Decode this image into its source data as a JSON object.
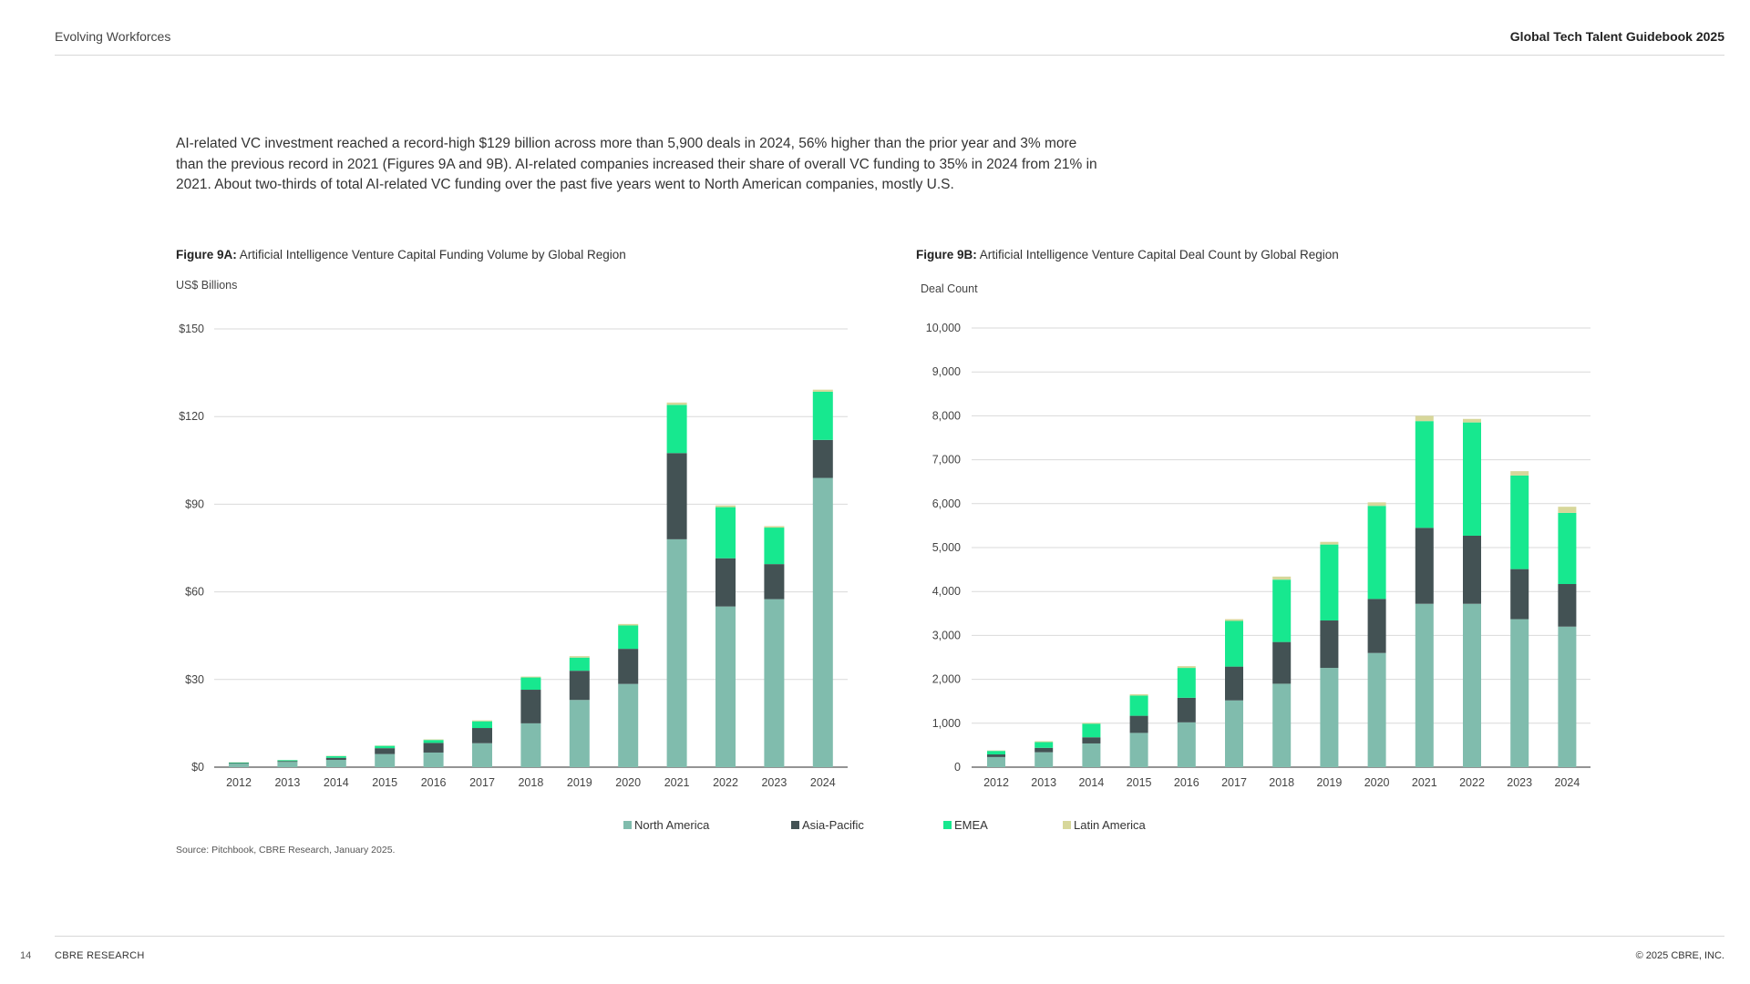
{
  "header": {
    "section": "Evolving Workforces",
    "publication": "Global Tech Talent Guidebook 2025"
  },
  "intro_text": "AI-related VC investment reached a record-high $129 billion across more than 5,900 deals in 2024, 56% higher than the prior year and 3% more than the previous record in 2021 (Figures 9A and 9B). AI-related companies increased their share of overall VC funding to 35% in 2024 from 21% in 2021. About two-thirds of total AI-related VC funding over the past five years went to North American companies, mostly U.S.",
  "figure_a": {
    "label": "Figure 9A:",
    "title": "Artificial Intelligence Venture Capital Funding Volume by Global Region",
    "unit": "US$ Billions"
  },
  "figure_b": {
    "label": "Figure 9B:",
    "title": "Artificial Intelligence Venture Capital Deal Count by Global Region",
    "unit": "Deal Count"
  },
  "legend": [
    {
      "name": "North America",
      "color": "#80bcad"
    },
    {
      "name": "Asia-Pacific",
      "color": "#435254"
    },
    {
      "name": "EMEA",
      "color": "#17e88f"
    },
    {
      "name": "Latin America",
      "color": "#d7d79a"
    }
  ],
  "source": "Source: Pitchbook, CBRE Research, January 2025.",
  "footer": {
    "page_number": "14",
    "org": "CBRE RESEARCH",
    "copyright": "© 2025 CBRE, INC."
  },
  "chart_data": [
    {
      "type": "bar",
      "stacked": true,
      "title": "Artificial Intelligence Venture Capital Funding Volume by Global Region",
      "ylabel": "US$ Billions",
      "categories": [
        "2012",
        "2013",
        "2014",
        "2015",
        "2016",
        "2017",
        "2018",
        "2019",
        "2020",
        "2021",
        "2022",
        "2023",
        "2024"
      ],
      "ylim": [
        0,
        150
      ],
      "yticks": [
        0,
        30,
        60,
        90,
        120,
        150
      ],
      "ytick_labels": [
        "$0",
        "$30",
        "$60",
        "$90",
        "$120",
        "$150"
      ],
      "grid": true,
      "series": [
        {
          "name": "North America",
          "color": "#80bcad",
          "values": [
            1.2,
            1.8,
            2.5,
            4.5,
            5.0,
            8.2,
            15.0,
            23.0,
            28.5,
            78.0,
            55.0,
            57.5,
            99.0
          ]
        },
        {
          "name": "Asia-Pacific",
          "color": "#435254",
          "values": [
            0.2,
            0.3,
            0.7,
            2.0,
            3.3,
            5.2,
            11.5,
            10.0,
            12.0,
            29.5,
            16.5,
            12.0,
            13.0
          ]
        },
        {
          "name": "EMEA",
          "color": "#17e88f",
          "values": [
            0.2,
            0.3,
            0.6,
            0.8,
            1.0,
            2.3,
            4.2,
            4.5,
            8.0,
            16.5,
            17.5,
            12.5,
            16.5
          ]
        },
        {
          "name": "Latin America",
          "color": "#d7d79a",
          "values": [
            0.05,
            0.05,
            0.1,
            0.1,
            0.2,
            0.3,
            0.3,
            0.5,
            0.5,
            0.8,
            0.6,
            0.5,
            0.7
          ]
        }
      ]
    },
    {
      "type": "bar",
      "stacked": true,
      "title": "Artificial Intelligence Venture Capital Deal Count by Global Region",
      "ylabel": "Deal Count",
      "categories": [
        "2012",
        "2013",
        "2014",
        "2015",
        "2016",
        "2017",
        "2018",
        "2019",
        "2020",
        "2021",
        "2022",
        "2023",
        "2024"
      ],
      "ylim": [
        0,
        10000
      ],
      "yticks": [
        0,
        1000,
        2000,
        3000,
        4000,
        5000,
        6000,
        7000,
        8000,
        9000,
        10000
      ],
      "ytick_labels": [
        "0",
        "1,000",
        "2,000",
        "3,000",
        "4,000",
        "5,000",
        "6,000",
        "7,000",
        "8,000",
        "9,000",
        "10,000"
      ],
      "grid": true,
      "series": [
        {
          "name": "North America",
          "color": "#80bcad",
          "values": [
            230,
            340,
            540,
            780,
            1020,
            1520,
            1900,
            2260,
            2600,
            3720,
            3720,
            3370,
            3200
          ]
        },
        {
          "name": "Asia-Pacific",
          "color": "#435254",
          "values": [
            60,
            100,
            140,
            390,
            560,
            770,
            950,
            1080,
            1230,
            1730,
            1550,
            1140,
            970
          ]
        },
        {
          "name": "EMEA",
          "color": "#17e88f",
          "values": [
            80,
            130,
            310,
            460,
            680,
            1040,
            1420,
            1730,
            2120,
            2430,
            2580,
            2130,
            1620
          ]
        },
        {
          "name": "Latin America",
          "color": "#d7d79a",
          "values": [
            10,
            20,
            20,
            30,
            40,
            40,
            70,
            60,
            80,
            120,
            80,
            100,
            140
          ]
        }
      ]
    }
  ]
}
